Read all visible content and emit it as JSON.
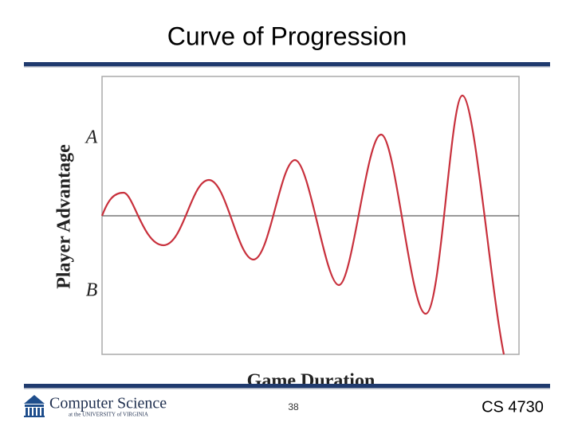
{
  "header": {
    "title": "Curve of Progression"
  },
  "figure": {
    "y_label": "Player Advantage",
    "marker_a": "A",
    "marker_b": "B",
    "x_label": "Game Duration"
  },
  "footer": {
    "logo_title": "Computer Science",
    "logo_subtitle": "at the UNIVERSITY of VIRGINIA",
    "page_number": "38",
    "course": "CS 4730"
  }
}
